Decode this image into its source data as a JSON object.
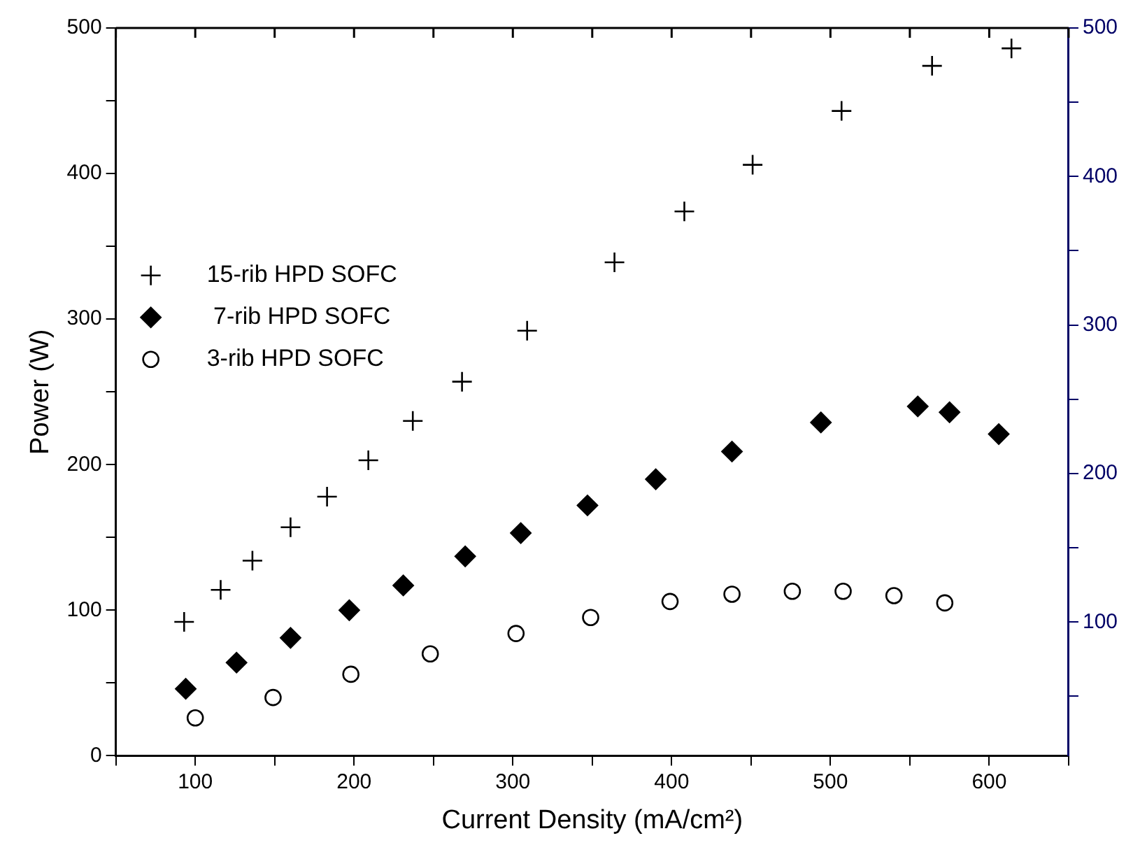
{
  "chart_data": {
    "type": "scatter",
    "xlabel": "Current Density (mA/cm²)",
    "ylabel": "Power (W)",
    "xlim": [
      50,
      650
    ],
    "ylim": [
      0,
      500
    ],
    "y2lim": [
      10,
      500
    ],
    "xticks": [
      {
        "value": 50,
        "label": null
      },
      100,
      {
        "value": 150,
        "label": null
      },
      200,
      {
        "value": 250,
        "label": null
      },
      300,
      {
        "value": 350,
        "label": null
      },
      400,
      {
        "value": 450,
        "label": null
      },
      500,
      {
        "value": 550,
        "label": null
      },
      600,
      {
        "value": 650,
        "label": null
      }
    ],
    "yticks": [
      0,
      {
        "value": 50,
        "label": null
      },
      100,
      {
        "value": 150,
        "label": null
      },
      200,
      {
        "value": 250,
        "label": null
      },
      300,
      {
        "value": 350,
        "label": null
      },
      400,
      {
        "value": 450,
        "label": null
      },
      500
    ],
    "y2ticks": [
      {
        "value": 50,
        "label": null
      },
      100,
      {
        "value": 150,
        "label": null
      },
      200,
      {
        "value": 250,
        "label": null
      },
      300,
      {
        "value": 350,
        "label": null
      },
      400,
      {
        "value": 450,
        "label": null
      },
      500
    ],
    "grid": false,
    "legend": "left",
    "series": [
      {
        "name": "15-rib HPD SOFC",
        "color": "#000000",
        "marker": "cross",
        "x": [
          93,
          116,
          136,
          160,
          183,
          209,
          237,
          268,
          309,
          364,
          408,
          451,
          507,
          564,
          614
        ],
        "values": [
          92,
          114,
          134,
          157,
          178,
          203,
          230,
          257,
          292,
          339,
          374,
          406,
          443,
          474,
          486
        ]
      },
      {
        "name": " 7-rib HPD SOFC",
        "color": "#000000",
        "marker": "diamond",
        "x": [
          94,
          126,
          160,
          197,
          231,
          270,
          305,
          347,
          390,
          438,
          494,
          555,
          575,
          606
        ],
        "values": [
          46,
          64,
          81,
          100,
          117,
          137,
          153,
          172,
          190,
          209,
          229,
          240,
          236,
          221
        ]
      },
      {
        "name": "3-rib HPD SOFC",
        "color": "#000000",
        "marker": "circle",
        "x": [
          100,
          149,
          198,
          248,
          302,
          349,
          399,
          438,
          476,
          508,
          540,
          572
        ],
        "values": [
          26,
          40,
          56,
          70,
          84,
          95,
          106,
          111,
          113,
          113,
          110,
          105
        ]
      }
    ]
  }
}
